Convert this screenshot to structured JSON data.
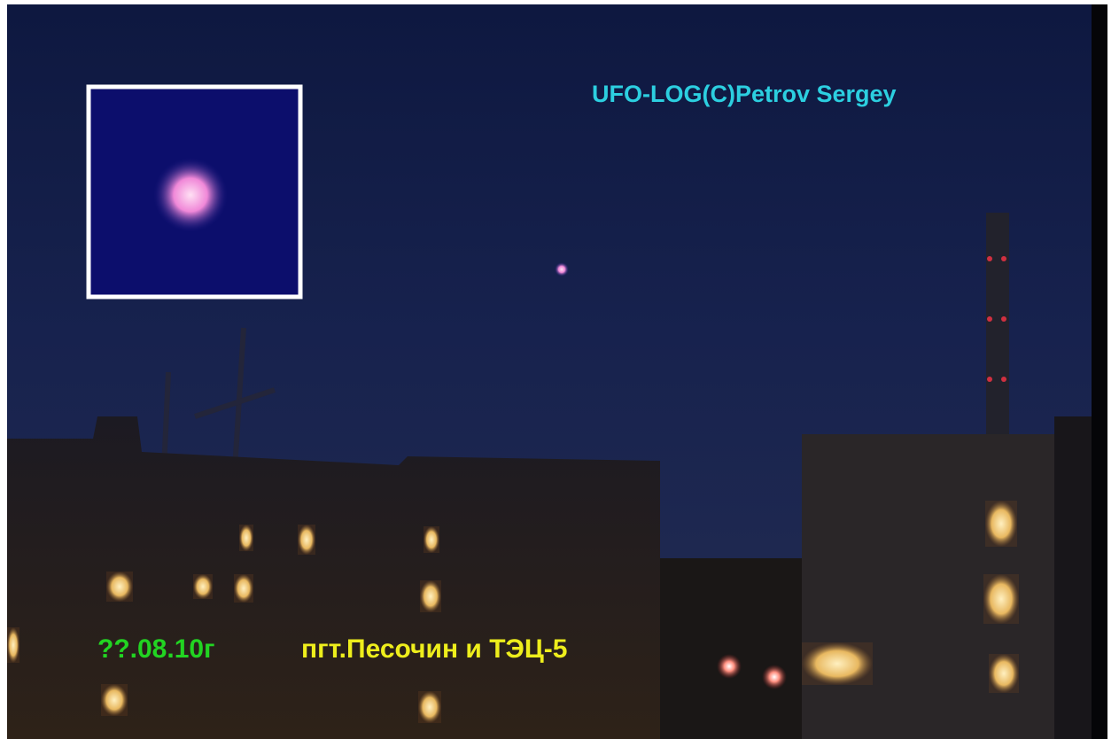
{
  "watermark": "UFO-LOG(C)Petrov Sergey",
  "caption": {
    "date": "??.08.10г",
    "location": "пгт.Песочин и ТЭЦ-5"
  }
}
